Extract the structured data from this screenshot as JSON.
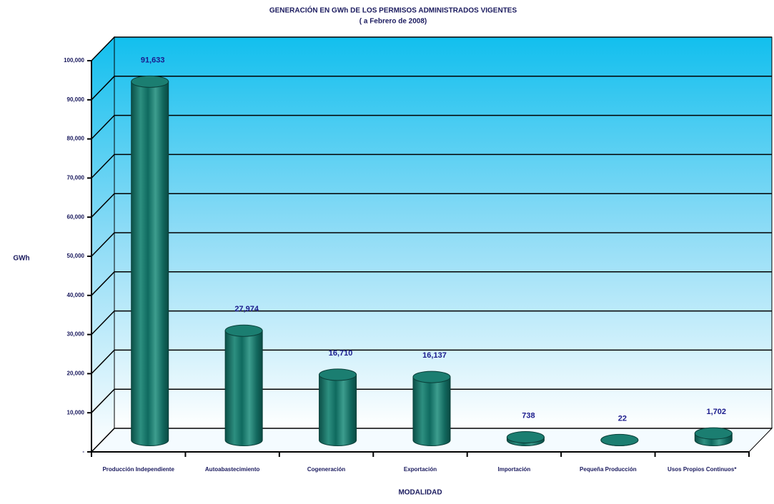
{
  "chart_data": {
    "type": "bar3d",
    "title": "GENERACIÓN EN GWh DE LOS PERMISOS ADMINISTRADOS VIGENTES",
    "subtitle": "( a Febrero de 2008)",
    "y_label": "GWh",
    "x_label": "MODALIDAD",
    "categories": [
      "Producción Independiente",
      "Autoabastecimiento",
      "Cogeneración",
      "Exportación",
      "Importación",
      "Pequeña Producción",
      "Usos Propios Continuos*"
    ],
    "values": [
      91633,
      27974,
      16710,
      16137,
      738,
      22,
      1702
    ],
    "value_labels": [
      "91,633",
      "27,974",
      "16,710",
      "16,137",
      "738",
      "22",
      "1,702"
    ],
    "color": "#116b60",
    "ylim": [
      0,
      100000
    ],
    "yticks": [
      {
        "value": 0,
        "label": "-"
      },
      {
        "value": 10000,
        "label": "10,000"
      },
      {
        "value": 20000,
        "label": "20,000"
      },
      {
        "value": 30000,
        "label": "30,000"
      },
      {
        "value": 40000,
        "label": "40,000"
      },
      {
        "value": 50000,
        "label": "50,000"
      },
      {
        "value": 60000,
        "label": "60,000"
      },
      {
        "value": 70000,
        "label": "70,000"
      },
      {
        "value": 80000,
        "label": "80,000"
      },
      {
        "value": 90000,
        "label": "90,000"
      },
      {
        "value": 100000,
        "label": "100,000"
      }
    ],
    "grid": true
  }
}
